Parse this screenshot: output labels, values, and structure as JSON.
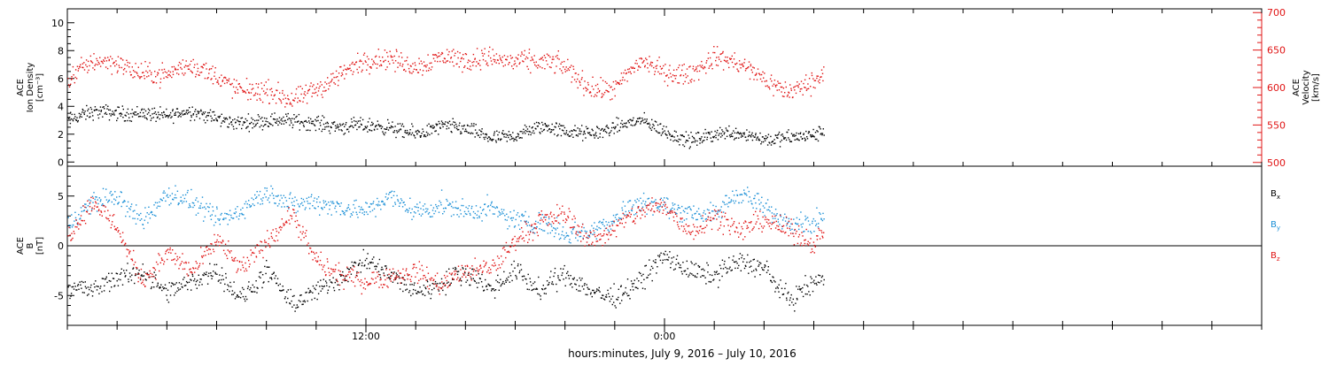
{
  "colors": {
    "black": "#000000",
    "blue": "#1a8fd6",
    "red": "#e01414",
    "axis": "#000000"
  },
  "footer": {
    "xlabel": "hours:minutes, July  9, 2016 – July 10, 2016"
  },
  "x_axis": {
    "range_hours": [
      0,
      48
    ],
    "major_ticks": [
      {
        "hours": 12,
        "label": "12:00"
      },
      {
        "hours": 24,
        "label": "0:00"
      }
    ],
    "minor_tick_every_hours": 2,
    "data_end_hours": 30.4
  },
  "chart_data": [
    {
      "type": "scatter",
      "panel": "plasma",
      "ylabel_left": [
        "ACE",
        "Ion Density",
        "[cm⁻³]"
      ],
      "ylabel_right": [
        "ACE",
        "Velocity",
        "[km/s]"
      ],
      "ylim_left": [
        -0.3,
        11
      ],
      "yticks_left": [
        0,
        2,
        4,
        6,
        8,
        10
      ],
      "ylim_right": [
        495,
        705
      ],
      "yticks_right": [
        500,
        550,
        600,
        650,
        700
      ],
      "series": [
        {
          "axis": "left",
          "color": "black",
          "x": [
            0,
            1,
            2,
            3,
            4,
            5,
            6,
            7,
            8,
            9,
            10,
            11,
            12,
            13,
            14,
            15,
            16,
            17,
            18,
            19,
            20,
            21,
            22,
            23,
            24,
            25,
            26,
            27,
            28,
            29,
            30,
            30.4
          ],
          "y": [
            3.0,
            3.4,
            3.6,
            3.8,
            3.2,
            3.5,
            3.3,
            3.0,
            2.8,
            2.9,
            3.1,
            2.6,
            2.4,
            2.5,
            2.3,
            2.5,
            2.2,
            1.9,
            2.1,
            2.4,
            2.1,
            2.3,
            2.6,
            2.8,
            2.2,
            1.8,
            2.0,
            1.9,
            1.8,
            2.0,
            1.8,
            2.0
          ]
        },
        {
          "axis": "right",
          "color": "red",
          "x": [
            0,
            1,
            2,
            3,
            4,
            5,
            6,
            7,
            8,
            9,
            10,
            11,
            12,
            13,
            14,
            15,
            16,
            17,
            18,
            19,
            20,
            21,
            22,
            23,
            24,
            25,
            26,
            27,
            28,
            29,
            30,
            30.4
          ],
          "y": [
            610,
            630,
            635,
            625,
            615,
            625,
            620,
            600,
            590,
            580,
            605,
            620,
            630,
            640,
            635,
            640,
            630,
            645,
            640,
            630,
            625,
            605,
            600,
            630,
            620,
            625,
            640,
            625,
            615,
            600,
            605,
            615
          ]
        }
      ]
    },
    {
      "type": "scatter",
      "panel": "magnetic",
      "ylabel_left": [
        "ACE",
        "B",
        "[nT]"
      ],
      "ylim": [
        -8,
        8
      ],
      "yticks": [
        -5,
        0,
        5
      ],
      "zero_line": true,
      "series": [
        {
          "name": "B",
          "subscript": "x",
          "color": "black",
          "x": [
            0,
            1,
            2,
            3,
            4,
            5,
            6,
            7,
            8,
            9,
            10,
            11,
            12,
            13,
            14,
            15,
            16,
            17,
            18,
            19,
            20,
            21,
            22,
            23,
            24,
            25,
            26,
            27,
            28,
            29,
            30,
            30.4
          ],
          "y": [
            -4,
            -5,
            -3,
            -2,
            -5,
            -4,
            -2,
            -5,
            -3,
            -6,
            -4,
            -3,
            -2,
            -3,
            -4,
            -4,
            -3,
            -4,
            -2,
            -5,
            -3,
            -4,
            -5,
            -4,
            -1,
            -2,
            -3,
            -2,
            -2,
            -5,
            -4,
            -3.5
          ]
        },
        {
          "name": "B",
          "subscript": "y",
          "color": "blue",
          "x": [
            0,
            1,
            2,
            3,
            4,
            5,
            6,
            7,
            8,
            9,
            10,
            11,
            12,
            13,
            14,
            15,
            16,
            17,
            18,
            19,
            20,
            21,
            22,
            23,
            24,
            25,
            26,
            27,
            28,
            29,
            30,
            30.4
          ],
          "y": [
            2,
            4,
            5,
            3,
            5,
            4,
            3,
            4,
            5,
            4,
            5,
            4,
            3,
            5,
            4,
            4,
            3,
            4,
            3,
            2,
            1,
            2,
            3,
            4,
            4,
            4,
            3,
            5,
            4,
            3,
            2,
            2.5
          ]
        },
        {
          "name": "B",
          "subscript": "z",
          "color": "red",
          "x": [
            0,
            1,
            2,
            3,
            4,
            5,
            6,
            7,
            8,
            9,
            10,
            11,
            12,
            13,
            14,
            15,
            16,
            17,
            18,
            19,
            20,
            21,
            22,
            23,
            24,
            25,
            26,
            27,
            28,
            29,
            30,
            30.4
          ],
          "y": [
            1,
            4,
            2,
            -3,
            -1,
            -3,
            1,
            -2,
            0,
            3,
            -1,
            -3,
            -4,
            -3,
            -2,
            -4,
            -3,
            -2,
            1,
            2,
            3,
            1,
            2,
            3,
            4,
            2,
            3,
            1,
            3,
            2,
            0,
            1
          ]
        }
      ]
    }
  ]
}
